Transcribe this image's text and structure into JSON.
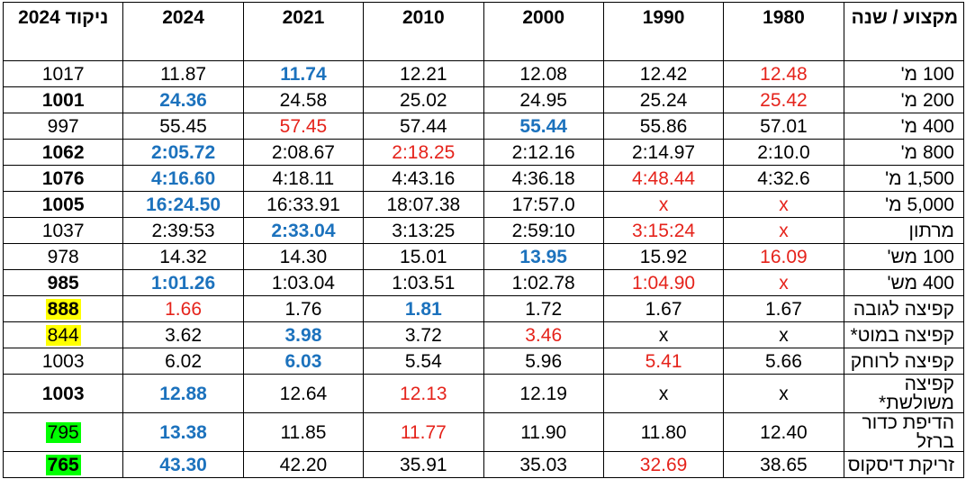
{
  "headers": [
    "מקצוע / שנה",
    "1980",
    "1990",
    "2000",
    "2010",
    "2021",
    "2024",
    "ניקוד 2024"
  ],
  "colors": {
    "worst": "#e5231b",
    "best": "#1c72bd",
    "highlight_yellow": "#ffff00",
    "highlight_green": "#00ff00"
  },
  "rows": [
    {
      "sport": "100 מ'",
      "cells": [
        {
          "v": "12.48",
          "s": "red"
        },
        {
          "v": "12.42"
        },
        {
          "v": "12.08"
        },
        {
          "v": "12.21"
        },
        {
          "v": "11.74",
          "s": "blue"
        },
        {
          "v": "11.87"
        }
      ],
      "score": {
        "v": "1017"
      }
    },
    {
      "sport": "200 מ'",
      "cells": [
        {
          "v": "25.42",
          "s": "red"
        },
        {
          "v": "25.24"
        },
        {
          "v": "24.95"
        },
        {
          "v": "25.02"
        },
        {
          "v": "24.58"
        },
        {
          "v": "24.36",
          "s": "blue"
        }
      ],
      "score": {
        "v": "1001",
        "b": true
      }
    },
    {
      "sport": "400 מ'",
      "cells": [
        {
          "v": "57.01"
        },
        {
          "v": "55.86"
        },
        {
          "v": "55.44",
          "s": "blue"
        },
        {
          "v": "57.44"
        },
        {
          "v": "57.45",
          "s": "red"
        },
        {
          "v": "55.45"
        }
      ],
      "score": {
        "v": "997"
      }
    },
    {
      "sport": "800 מ'",
      "cells": [
        {
          "v": "2:10.0"
        },
        {
          "v": "2:14.97"
        },
        {
          "v": "2:12.16"
        },
        {
          "v": "2:18.25",
          "s": "red"
        },
        {
          "v": "2:08.67"
        },
        {
          "v": "2:05.72",
          "s": "blue"
        }
      ],
      "score": {
        "v": "1062",
        "b": true
      }
    },
    {
      "sport": "1,500 מ'",
      "cells": [
        {
          "v": "4:32.6"
        },
        {
          "v": "4:48.44",
          "s": "red"
        },
        {
          "v": "4:36.18"
        },
        {
          "v": "4:43.16"
        },
        {
          "v": "4:18.11"
        },
        {
          "v": "4:16.60",
          "s": "blue"
        }
      ],
      "score": {
        "v": "1076",
        "b": true
      }
    },
    {
      "sport": "5,000 מ'",
      "cells": [
        {
          "v": "x",
          "s": "red"
        },
        {
          "v": "x",
          "s": "red"
        },
        {
          "v": "17:57.0"
        },
        {
          "v": "18:07.38"
        },
        {
          "v": "16:33.91"
        },
        {
          "v": "16:24.50",
          "s": "blue"
        }
      ],
      "score": {
        "v": "1005",
        "b": true
      }
    },
    {
      "sport": "מרתון",
      "cells": [
        {
          "v": "x",
          "s": "red"
        },
        {
          "v": "3:15:24",
          "s": "red"
        },
        {
          "v": "2:59:10"
        },
        {
          "v": "3:13:25"
        },
        {
          "v": "2:33.04",
          "s": "blue"
        },
        {
          "v": "2:39:53"
        }
      ],
      "score": {
        "v": "1037"
      }
    },
    {
      "sport": "100 מש'",
      "cells": [
        {
          "v": "16.09",
          "s": "red"
        },
        {
          "v": "15.92"
        },
        {
          "v": "13.95",
          "s": "blue"
        },
        {
          "v": "15.01"
        },
        {
          "v": "14.30"
        },
        {
          "v": "14.32"
        }
      ],
      "score": {
        "v": "978"
      }
    },
    {
      "sport": "400 מש'",
      "cells": [
        {
          "v": "x",
          "s": "red"
        },
        {
          "v": "1:04.90",
          "s": "red"
        },
        {
          "v": "1:02.78"
        },
        {
          "v": "1:03.51"
        },
        {
          "v": "1:03.04"
        },
        {
          "v": "1:01.26",
          "s": "blue"
        }
      ],
      "score": {
        "v": "985",
        "b": true
      }
    },
    {
      "sport": "קפיצה לגובה",
      "cells": [
        {
          "v": "1.67"
        },
        {
          "v": "1.67"
        },
        {
          "v": "1.72"
        },
        {
          "v": "1.81",
          "s": "blue"
        },
        {
          "v": "1.76"
        },
        {
          "v": "1.66",
          "s": "red"
        }
      ],
      "score": {
        "v": "888",
        "b": true,
        "hl": "yellow"
      }
    },
    {
      "sport": "קפיצה במוט*",
      "cells": [
        {
          "v": "x"
        },
        {
          "v": "x"
        },
        {
          "v": "3.46",
          "s": "red"
        },
        {
          "v": "3.72"
        },
        {
          "v": "3.98",
          "s": "blue"
        },
        {
          "v": "3.62"
        }
      ],
      "score": {
        "v": "844",
        "hl": "yellow"
      }
    },
    {
      "sport": "קפיצה לרוחק",
      "cells": [
        {
          "v": "5.66"
        },
        {
          "v": "5.41",
          "s": "red"
        },
        {
          "v": "5.96"
        },
        {
          "v": "5.54"
        },
        {
          "v": "6.03",
          "s": "blue"
        },
        {
          "v": "6.02"
        }
      ],
      "score": {
        "v": "1003"
      }
    },
    {
      "sport": "קפיצה משולשת*",
      "cells": [
        {
          "v": "x"
        },
        {
          "v": "x"
        },
        {
          "v": "12.19"
        },
        {
          "v": "12.13",
          "s": "red"
        },
        {
          "v": "12.64"
        },
        {
          "v": "12.88",
          "s": "blue"
        }
      ],
      "score": {
        "v": "1003",
        "b": true
      }
    },
    {
      "sport": "הדיפת כדור ברזל",
      "cells": [
        {
          "v": "12.40"
        },
        {
          "v": "11.80"
        },
        {
          "v": "11.90"
        },
        {
          "v": "11.77",
          "s": "red"
        },
        {
          "v": "11.85"
        },
        {
          "v": "13.38",
          "s": "blue"
        }
      ],
      "score": {
        "v": "795",
        "hl": "green"
      }
    },
    {
      "sport": "זריקת דיסקוס",
      "cells": [
        {
          "v": "38.65"
        },
        {
          "v": "32.69",
          "s": "red"
        },
        {
          "v": "35.03"
        },
        {
          "v": "35.91"
        },
        {
          "v": "42.20"
        },
        {
          "v": "43.30",
          "s": "blue"
        }
      ],
      "score": {
        "v": "765",
        "b": true,
        "hl": "green"
      }
    }
  ]
}
